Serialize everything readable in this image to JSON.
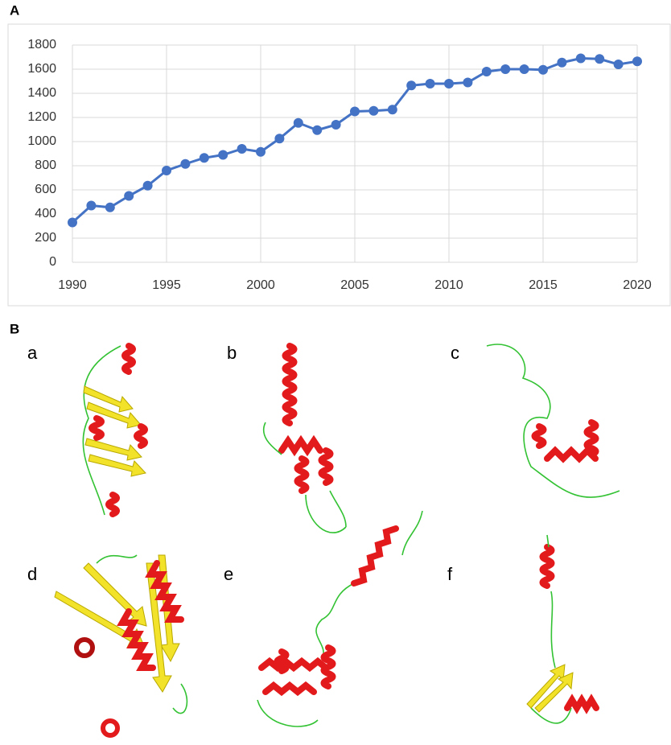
{
  "figure": {
    "panel_a_label": "A",
    "panel_b_label": "B",
    "structure_labels": [
      "a",
      "b",
      "c",
      "d",
      "e",
      "f"
    ]
  },
  "chart_data": {
    "type": "line",
    "x": [
      1990,
      1991,
      1992,
      1993,
      1994,
      1995,
      1996,
      1997,
      1998,
      1999,
      2000,
      2001,
      2002,
      2003,
      2004,
      2005,
      2006,
      2007,
      2008,
      2009,
      2010,
      2011,
      2012,
      2013,
      2014,
      2015,
      2016,
      2017,
      2018,
      2019,
      2020
    ],
    "values": [
      330,
      470,
      455,
      550,
      635,
      760,
      815,
      865,
      890,
      940,
      915,
      1025,
      1155,
      1095,
      1140,
      1250,
      1255,
      1265,
      1465,
      1480,
      1480,
      1490,
      1580,
      1600,
      1600,
      1595,
      1655,
      1690,
      1685,
      1640,
      1665
    ],
    "color": "#4472c4",
    "xlim": [
      1990,
      2020
    ],
    "xticks": [
      1990,
      1995,
      2000,
      2005,
      2010,
      2015,
      2020
    ],
    "ylim": [
      0,
      1800
    ],
    "yticks": [
      0,
      200,
      400,
      600,
      800,
      1000,
      1200,
      1400,
      1600,
      1800
    ],
    "grid": true
  }
}
